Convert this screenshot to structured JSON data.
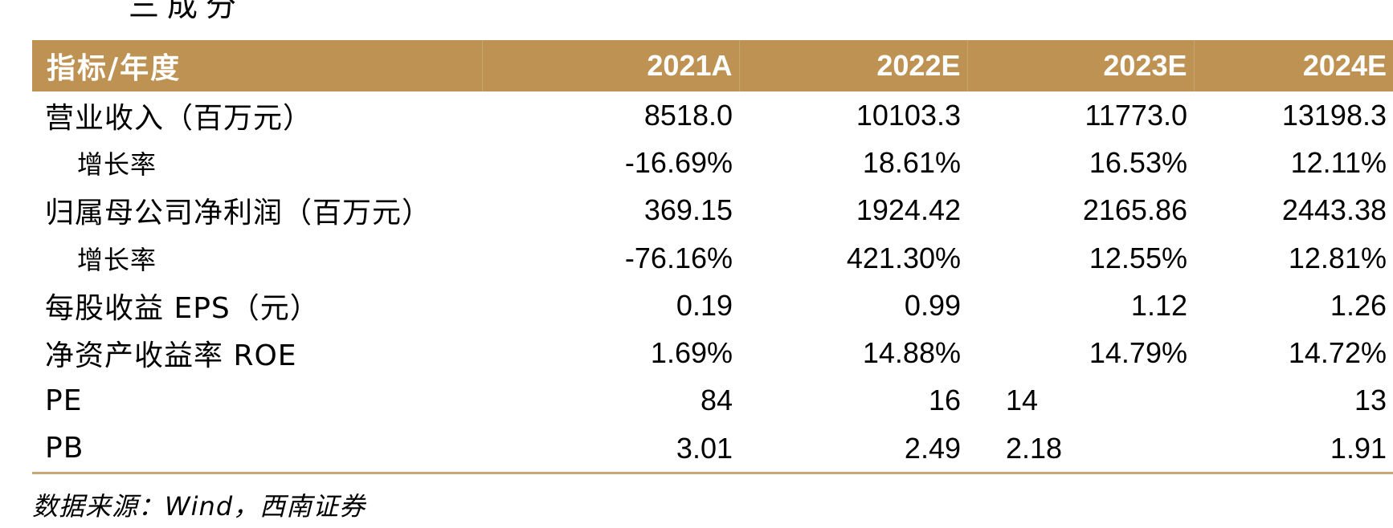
{
  "top_fragment": "三成分",
  "header": {
    "label": "指标/年度",
    "years": [
      "2021A",
      "2022E",
      "2023E",
      "2024E"
    ]
  },
  "rows": [
    {
      "label": "营业收入（百万元）",
      "values": [
        "8518.0",
        "10103.3",
        "11773.0",
        "13198.3"
      ]
    },
    {
      "label": "增长率",
      "values": [
        "-16.69%",
        "18.61%",
        "16.53%",
        "12.11%"
      ]
    },
    {
      "label": "归属母公司净利润（百万元）",
      "values": [
        "369.15",
        "1924.42",
        "2165.86",
        "2443.38"
      ]
    },
    {
      "label": "增长率",
      "values": [
        "-76.16%",
        "421.30%",
        "12.55%",
        "12.81%"
      ]
    },
    {
      "label": "每股收益 EPS（元）",
      "values": [
        "0.19",
        "0.99",
        "1.12",
        "1.26"
      ]
    },
    {
      "label": "净资产收益率 ROE",
      "values": [
        "1.69%",
        "14.88%",
        "14.79%",
        "14.72%"
      ]
    },
    {
      "label": "PE",
      "values": [
        "84",
        "16",
        "14",
        "13"
      ]
    },
    {
      "label": "PB",
      "values": [
        "3.01",
        "2.49",
        "2.18",
        "1.91"
      ]
    }
  ],
  "source": "数据来源：Wind，西南证券",
  "colors": {
    "header_bg": "#bd9253",
    "header_text": "#ffffff",
    "bottom_rule": "#c8a878"
  }
}
